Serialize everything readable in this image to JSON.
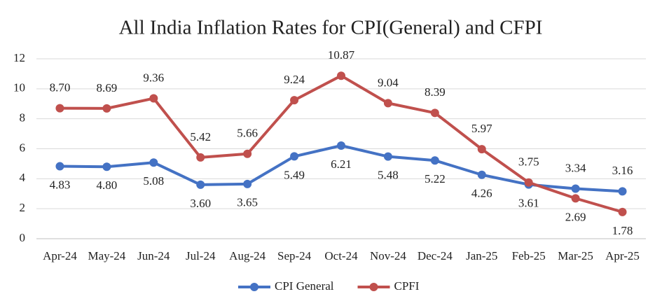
{
  "chart_data": {
    "type": "line",
    "title": "All India Inflation Rates for CPI(General) and CFPI",
    "categories": [
      "Apr-24",
      "May-24",
      "Jun-24",
      "Jul-24",
      "Aug-24",
      "Sep-24",
      "Oct-24",
      "Nov-24",
      "Dec-24",
      "Jan-25",
      "Feb-25",
      "Mar-25",
      "Apr-25"
    ],
    "series": [
      {
        "name": "CPI General",
        "color": "#4472c4",
        "values": [
          4.83,
          4.8,
          5.08,
          3.6,
          3.65,
          5.49,
          6.21,
          5.48,
          5.22,
          4.26,
          3.61,
          3.34,
          3.16
        ],
        "value_labels": [
          "4.83",
          "4.80",
          "5.08",
          "3.60",
          "3.65",
          "5.49",
          "6.21",
          "5.48",
          "5.22",
          "4.26",
          "3.61",
          "3.34",
          "3.16"
        ]
      },
      {
        "name": "CPFI",
        "color": "#c0504d",
        "values": [
          8.7,
          8.69,
          9.36,
          5.42,
          5.66,
          9.24,
          10.87,
          9.04,
          8.39,
          5.97,
          3.75,
          2.69,
          1.78
        ],
        "value_labels": [
          "8.70",
          "8.69",
          "9.36",
          "5.42",
          "5.66",
          "9.24",
          "10.87",
          "9.04",
          "8.39",
          "5.97",
          "3.75",
          "2.69",
          "1.78"
        ]
      }
    ],
    "ylim": [
      0,
      12
    ],
    "yticks": [
      0,
      2,
      4,
      6,
      8,
      10,
      12
    ],
    "grid": true,
    "legend": "bottom"
  }
}
